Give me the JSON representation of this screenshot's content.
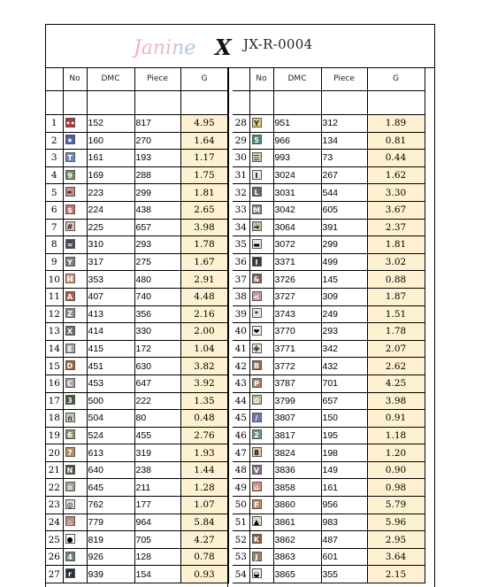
{
  "header": {
    "logo_text": "JanineX",
    "code": "JX-R-0004"
  },
  "columns": {
    "no": "No",
    "dmc": "DMC",
    "piece": "Piece",
    "g": "G"
  },
  "colors": {
    "g_fill": "#fdf1d1"
  },
  "left_rows": [
    {
      "no": "1",
      "sym": "••",
      "bg": "#b8323a",
      "fg": "#fff",
      "dmc": "152",
      "piece": "817",
      "g": "4.95"
    },
    {
      "no": "2",
      "sym": "★",
      "bg": "#4c5ca8",
      "fg": "#fff",
      "dmc": "160",
      "piece": "270",
      "g": "1.64"
    },
    {
      "no": "3",
      "sym": "T",
      "bg": "#6a8bc2",
      "fg": "#fff",
      "dmc": "161",
      "piece": "193",
      "g": "1.17"
    },
    {
      "no": "4",
      "sym": "9",
      "bg": "#7d8a6a",
      "fg": "#fff",
      "dmc": "169",
      "piece": "288",
      "g": "1.75"
    },
    {
      "no": "5",
      "sym": "✒",
      "bg": "#c98d7e",
      "fg": "#222",
      "dmc": "223",
      "piece": "299",
      "g": "1.81"
    },
    {
      "no": "6",
      "sym": "$",
      "bg": "#c4776a",
      "fg": "#fff",
      "dmc": "224",
      "piece": "438",
      "g": "2.65"
    },
    {
      "no": "7",
      "sym": "#",
      "bg": "#e8c0b8",
      "fg": "#222",
      "dmc": "225",
      "piece": "657",
      "g": "3.98"
    },
    {
      "no": "8",
      "sym": "≈",
      "bg": "#454c5a",
      "fg": "#fff",
      "dmc": "310",
      "piece": "293",
      "g": "1.78"
    },
    {
      "no": "9",
      "sym": "Y",
      "bg": "#7c7e84",
      "fg": "#fff",
      "dmc": "317",
      "piece": "275",
      "g": "1.67"
    },
    {
      "no": "10",
      "sym": "H",
      "bg": "#e79b83",
      "fg": "#fff",
      "dmc": "353",
      "piece": "480",
      "g": "2.91"
    },
    {
      "no": "11",
      "sym": "A",
      "bg": "#b25a45",
      "fg": "#fff",
      "dmc": "407",
      "piece": "740",
      "g": "4.48"
    },
    {
      "no": "12",
      "sym": "Z",
      "bg": "#8a8e8e",
      "fg": "#fff",
      "dmc": "413",
      "piece": "356",
      "g": "2.16"
    },
    {
      "no": "13",
      "sym": "X",
      "bg": "#6b6f72",
      "fg": "#fff",
      "dmc": "414",
      "piece": "330",
      "g": "2.00"
    },
    {
      "no": "14",
      "sym": "E",
      "bg": "#a4a8aa",
      "fg": "#fff",
      "dmc": "415",
      "piece": "172",
      "g": "1.04"
    },
    {
      "no": "15",
      "sym": "D",
      "bg": "#9a6b3a",
      "fg": "#fff",
      "dmc": "451",
      "piece": "630",
      "g": "3.82"
    },
    {
      "no": "16",
      "sym": "C",
      "bg": "#a8a2a4",
      "fg": "#fff",
      "dmc": "453",
      "piece": "647",
      "g": "3.92"
    },
    {
      "no": "17",
      "sym": "3",
      "bg": "#3f5a3a",
      "fg": "#fff",
      "dmc": "500",
      "piece": "222",
      "g": "1.35"
    },
    {
      "no": "18",
      "sym": "ก",
      "bg": "#b9c9b5",
      "fg": "#222",
      "dmc": "504",
      "piece": "80",
      "g": "0.48"
    },
    {
      "no": "19",
      "sym": "6",
      "bg": "#8e9d6f",
      "fg": "#fff",
      "dmc": "524",
      "piece": "455",
      "g": "2.76"
    },
    {
      "no": "20",
      "sym": "7",
      "bg": "#b7925e",
      "fg": "#fff",
      "dmc": "613",
      "piece": "319",
      "g": "1.93"
    },
    {
      "no": "21",
      "sym": "N",
      "bg": "#53503a",
      "fg": "#fff",
      "dmc": "640",
      "piece": "238",
      "g": "1.44"
    },
    {
      "no": "22",
      "sym": "ถ",
      "bg": "#a8a692",
      "fg": "#fff",
      "dmc": "645",
      "piece": "211",
      "g": "1.28"
    },
    {
      "no": "23",
      "sym": "◎",
      "bg": "#dcdcdc",
      "fg": "#222",
      "dmc": "762",
      "piece": "177",
      "g": "1.07"
    },
    {
      "no": "24",
      "sym": "△",
      "bg": "#c38a7e",
      "fg": "#fff",
      "dmc": "779",
      "piece": "964",
      "g": "5.84"
    },
    {
      "no": "25",
      "sym": "●",
      "bg": "#ffffff",
      "fg": "#000",
      "dmc": "819",
      "piece": "705",
      "g": "4.27"
    },
    {
      "no": "26",
      "sym": "4",
      "bg": "#6d847d",
      "fg": "#fff",
      "dmc": "926",
      "piece": "128",
      "g": "0.78"
    },
    {
      "no": "27",
      "sym": "r",
      "bg": "#24323e",
      "fg": "#fff",
      "dmc": "939",
      "piece": "154",
      "g": "0.93"
    }
  ],
  "right_rows": [
    {
      "no": "28",
      "sym": "Y",
      "bg": "#e8c880",
      "fg": "#222",
      "dmc": "951",
      "piece": "312",
      "g": "1.89"
    },
    {
      "no": "29",
      "sym": "5",
      "bg": "#4c8a6a",
      "fg": "#fff",
      "dmc": "966",
      "piece": "134",
      "g": "0.81"
    },
    {
      "no": "30",
      "sym": "☰",
      "bg": "#c9d8a8",
      "fg": "#222",
      "dmc": "993",
      "piece": "73",
      "g": "0.44"
    },
    {
      "no": "31",
      "sym": "I",
      "bg": "#e8e8e8",
      "fg": "#000",
      "dmc": "3024",
      "piece": "267",
      "g": "1.62"
    },
    {
      "no": "32",
      "sym": "L",
      "bg": "#6b6452",
      "fg": "#fff",
      "dmc": "3031",
      "piece": "544",
      "g": "3.30"
    },
    {
      "no": "33",
      "sym": "M",
      "bg": "#8a7e72",
      "fg": "#fff",
      "dmc": "3042",
      "piece": "605",
      "g": "3.67"
    },
    {
      "no": "34",
      "sym": "➔",
      "bg": "#c6b8a5",
      "fg": "#000",
      "dmc": "3064",
      "piece": "391",
      "g": "2.37"
    },
    {
      "no": "35",
      "sym": "▬",
      "bg": "#e6e6e6",
      "fg": "#000",
      "dmc": "3072",
      "piece": "299",
      "g": "1.81"
    },
    {
      "no": "36",
      "sym": "I",
      "bg": "#3a3a3a",
      "fg": "#fff",
      "dmc": "3371",
      "piece": "499",
      "g": "3.02"
    },
    {
      "no": "37",
      "sym": "&",
      "bg": "#8a5a52",
      "fg": "#fff",
      "dmc": "3726",
      "piece": "145",
      "g": "0.88"
    },
    {
      "no": "38",
      "sym": "<",
      "bg": "#c89aa0",
      "fg": "#fff",
      "dmc": "3727",
      "piece": "309",
      "g": "1.87"
    },
    {
      "no": "39",
      "sym": "*",
      "bg": "#e8e8e8",
      "fg": "#000",
      "dmc": "3743",
      "piece": "249",
      "g": "1.51"
    },
    {
      "no": "40",
      "sym": "❤",
      "bg": "#f0f0f0",
      "fg": "#000",
      "dmc": "3770",
      "piece": "293",
      "g": "1.78"
    },
    {
      "no": "41",
      "sym": "※",
      "bg": "#f5ead8",
      "fg": "#000",
      "dmc": "3771",
      "piece": "342",
      "g": "2.07"
    },
    {
      "no": "42",
      "sym": "B",
      "bg": "#9a6a52",
      "fg": "#fff",
      "dmc": "3772",
      "piece": "432",
      "g": "2.62"
    },
    {
      "no": "43",
      "sym": "P",
      "bg": "#b07e5e",
      "fg": "#fff",
      "dmc": "3787",
      "piece": "701",
      "g": "4.25"
    },
    {
      "no": "44",
      "sym": "✿",
      "bg": "#c0b890",
      "fg": "#fff",
      "dmc": "3799",
      "piece": "657",
      "g": "3.98"
    },
    {
      "no": "45",
      "sym": "/",
      "bg": "#6a7ab0",
      "fg": "#fff",
      "dmc": "3807",
      "piece": "150",
      "g": "0.91"
    },
    {
      "no": "46",
      "sym": "2",
      "bg": "#6a9a8a",
      "fg": "#fff",
      "dmc": "3817",
      "piece": "195",
      "g": "1.18"
    },
    {
      "no": "47",
      "sym": "8",
      "bg": "#e8c8a8",
      "fg": "#000",
      "dmc": "3824",
      "piece": "198",
      "g": "1.20"
    },
    {
      "no": "48",
      "sym": "V",
      "bg": "#8a6a90",
      "fg": "#fff",
      "dmc": "3836",
      "piece": "149",
      "g": "0.90"
    },
    {
      "no": "49",
      "sym": "⌂",
      "bg": "#d88e7a",
      "fg": "#fff",
      "dmc": "3858",
      "piece": "161",
      "g": "0.98"
    },
    {
      "no": "50",
      "sym": "F",
      "bg": "#c08a6a",
      "fg": "#fff",
      "dmc": "3860",
      "piece": "956",
      "g": "5.79"
    },
    {
      "no": "51",
      "sym": "▲",
      "bg": "#e8d8c8",
      "fg": "#000",
      "dmc": "3861",
      "piece": "983",
      "g": "5.96"
    },
    {
      "no": "52",
      "sym": "K",
      "bg": "#8a5e3a",
      "fg": "#fff",
      "dmc": "3862",
      "piece": "487",
      "g": "2.95"
    },
    {
      "no": "53",
      "sym": "J",
      "bg": "#9a8262",
      "fg": "#fff",
      "dmc": "3863",
      "piece": "601",
      "g": "3.64"
    },
    {
      "no": "54",
      "sym": "◒",
      "bg": "#f0ece4",
      "fg": "#000",
      "dmc": "3865",
      "piece": "355",
      "g": "2.15"
    }
  ]
}
